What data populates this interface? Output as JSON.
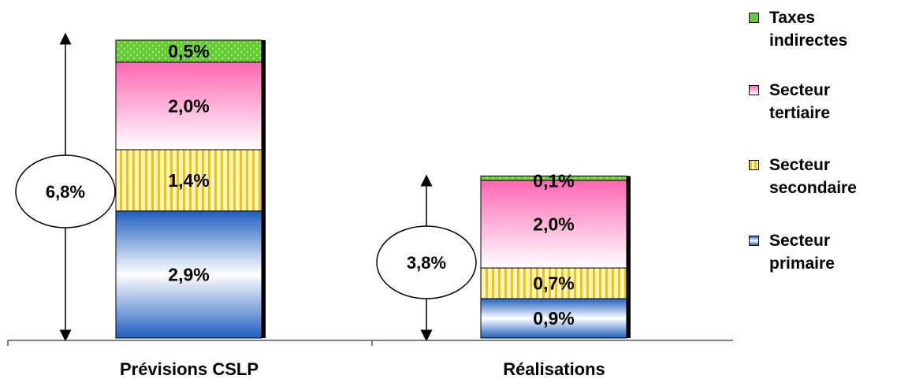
{
  "chart_data": {
    "type": "bar",
    "stacked": true,
    "categories": [
      "Prévisions CSLP",
      "Réalisations"
    ],
    "series": [
      {
        "name": "Secteur primaire",
        "values": [
          2.9,
          0.9
        ],
        "labels": [
          "2,9%",
          "0,9%"
        ],
        "color": "#1f5fbf"
      },
      {
        "name": "Secteur secondaire",
        "values": [
          1.4,
          0.7
        ],
        "labels": [
          "1,4%",
          "0,7%"
        ],
        "color": "#f5c400"
      },
      {
        "name": "Secteur tertiaire",
        "values": [
          2.0,
          2.0
        ],
        "labels": [
          "2,0%",
          "2,0%"
        ],
        "color": "#ff66b3"
      },
      {
        "name": "Taxes indirectes",
        "values": [
          0.5,
          0.1
        ],
        "labels": [
          "0,5%",
          "0,1%"
        ],
        "color": "#66cc33"
      }
    ],
    "totals": [
      "6,8%",
      "3,8%"
    ],
    "legend": {
      "position": "right",
      "entries": [
        "Taxes\nindirectes",
        "Secteur\ntertiaire",
        "Secteur\nsecondaire",
        "Secteur\nprimaire"
      ]
    },
    "grid": false,
    "ylim": [
      0,
      6.8
    ]
  }
}
